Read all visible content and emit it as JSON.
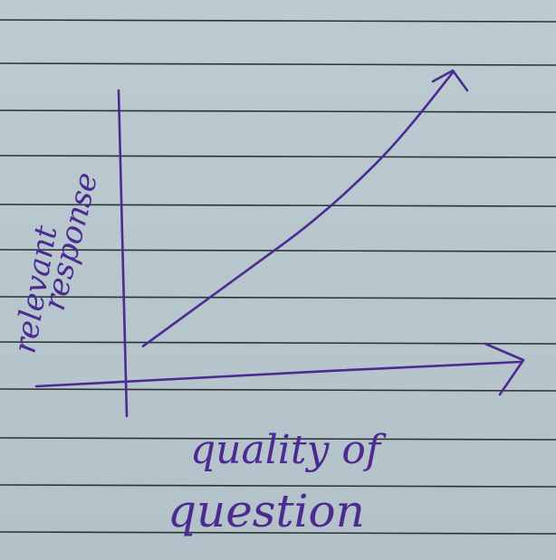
{
  "colors": {
    "paper": "#b9c9cf",
    "rule": "#1f2226",
    "ink": "#4b2a92"
  },
  "chart_data": {
    "type": "line",
    "title": "",
    "xlabel": "quality of question",
    "xlabel_lines": [
      "quality of",
      "question"
    ],
    "ylabel": "relevant response",
    "ylabel_lines": [
      "relevant",
      "response"
    ],
    "x": [
      0,
      1,
      2,
      3,
      4,
      5,
      6,
      7,
      8,
      9,
      10
    ],
    "series": [
      {
        "values": [
          0.3,
          1.1,
          1.9,
          2.7,
          3.5,
          4.3,
          5.2,
          6.2,
          7.3,
          8.6,
          10.0
        ]
      }
    ],
    "xlim": [
      0,
      10
    ],
    "ylim": [
      0,
      10
    ],
    "grid": false,
    "legend": "none",
    "axis_arrows": true,
    "note": ""
  }
}
